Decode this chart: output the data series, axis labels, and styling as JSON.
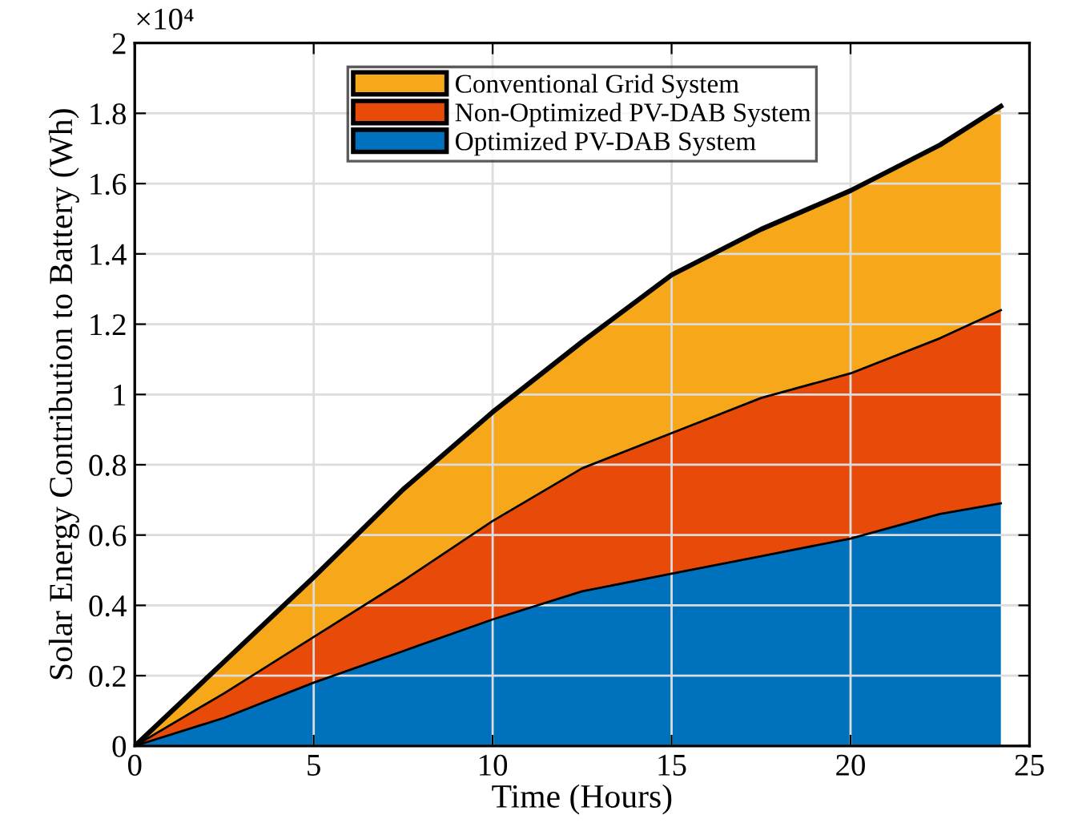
{
  "chart_data": {
    "type": "area",
    "stacked": true,
    "xlabel": "Time (Hours)",
    "ylabel": "Solar Energy Contribution to Battery (Wh)",
    "annotations": [
      "×10⁴"
    ],
    "x": [
      0,
      2.5,
      5,
      7.5,
      10,
      12.5,
      15,
      17.5,
      20,
      22.5,
      24.2
    ],
    "series": [
      {
        "name": "Optimized PV-DAB System",
        "color": "#0072bd",
        "values": [
          0,
          0.08,
          0.18,
          0.27,
          0.36,
          0.44,
          0.49,
          0.54,
          0.59,
          0.66,
          0.69
        ]
      },
      {
        "name": "Non-Optimized PV-DAB System",
        "color": "#e84a0a",
        "values": [
          0,
          0.07,
          0.13,
          0.2,
          0.28,
          0.35,
          0.4,
          0.45,
          0.47,
          0.5,
          0.55
        ]
      },
      {
        "name": "Conventional Grid System",
        "color": "#f7a71a",
        "values": [
          0,
          0.09,
          0.17,
          0.26,
          0.31,
          0.36,
          0.45,
          0.48,
          0.52,
          0.55,
          0.58
        ]
      }
    ],
    "xlim": [
      0,
      25
    ],
    "xticks": [
      0,
      5,
      10,
      15,
      20,
      25
    ],
    "ylim": [
      0,
      2
    ],
    "yticks": [
      0,
      0.2,
      0.4,
      0.6,
      0.8,
      1,
      1.2,
      1.4,
      1.6,
      1.8,
      2
    ],
    "grid": true,
    "legend": "top"
  }
}
